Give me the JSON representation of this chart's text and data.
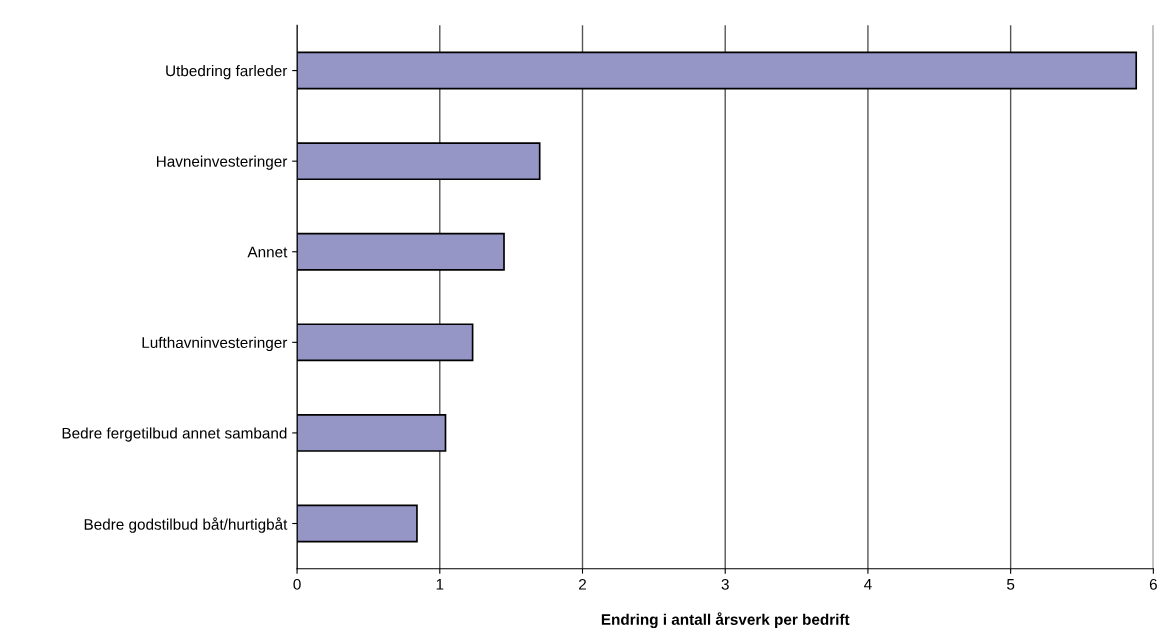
{
  "chart_data": {
    "type": "bar",
    "orientation": "horizontal",
    "xlabel": "Endring i antall årsverk per bedrift",
    "categories": [
      "Utbedring farleder",
      "Havneinvesteringer",
      "Annet",
      "Lufthavninvesteringer",
      "Bedre fergetilbud annet samband",
      "Bedre godstilbud båt/hurtigbåt"
    ],
    "values": [
      5.88,
      1.7,
      1.45,
      1.23,
      1.04,
      0.84
    ],
    "color": "#9595c6",
    "xlim": [
      0,
      6
    ],
    "xticks": [
      0,
      1,
      2,
      3,
      4,
      5,
      6
    ],
    "grid": "x"
  }
}
